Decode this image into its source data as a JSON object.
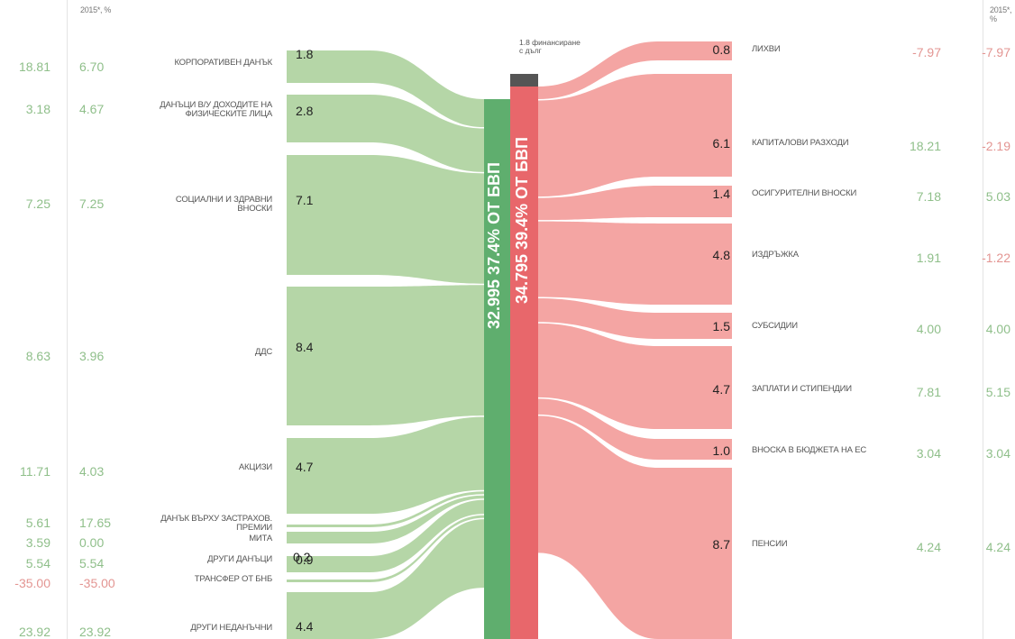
{
  "headers": {
    "left_col2": "2015*, %",
    "right_col2": "2015*, %"
  },
  "left_items": [
    {
      "label": "КОРПОРАТИВЕН ДАНЪК",
      "value": "1.8",
      "col1": "18.81",
      "col2": "6.70"
    },
    {
      "label": "ДАНЪЦИ В/У ДОХОДИТЕ НА ФИЗИЧЕСКИТЕ ЛИЦА",
      "value": "2.8",
      "col1": "3.18",
      "col2": "4.67"
    },
    {
      "label": "СОЦИАЛНИ И ЗДРАВНИ ВНОСКИ",
      "value": "7.1",
      "col1": "7.25",
      "col2": "7.25"
    },
    {
      "label": "ДДС",
      "value": "8.4",
      "col1": "8.63",
      "col2": "3.96"
    },
    {
      "label": "АКЦИЗИ",
      "value": "4.7",
      "col1": "11.71",
      "col2": "4.03"
    },
    {
      "label": "ДАНЪК ВЪРХУ ЗАСТРАХОВ. ПРЕМИИ",
      "value": "",
      "col1": "5.61",
      "col2": "17.65"
    },
    {
      "label": "МИТА",
      "value": "0.2",
      "col1": "3.59",
      "col2": "0.00"
    },
    {
      "label": "ДРУГИ ДАНЪЦИ",
      "value": "0.9",
      "col1": "5.54",
      "col2": "5.54"
    },
    {
      "label": "ТРАНСФЕР ОТ БНБ",
      "value": "",
      "col1": "-35.00",
      "col2": "-35.00"
    },
    {
      "label": "ДРУГИ НЕДАНЪЧНИ",
      "value": "4.4",
      "col1": "23.92",
      "col2": "23.92"
    }
  ],
  "right_items": [
    {
      "label": "ЛИХВИ",
      "value": "0.8",
      "col1": "-7.97",
      "col2": "-7.97"
    },
    {
      "label": "КАПИТАЛОВИ РАЗХОДИ",
      "value": "6.1",
      "col1": "18.21",
      "col2": "-2.19"
    },
    {
      "label": "ОСИГУРИТЕЛНИ ВНОСКИ",
      "value": "1.4",
      "col1": "7.18",
      "col2": "5.03"
    },
    {
      "label": "ИЗДРЪЖКА",
      "value": "4.8",
      "col1": "1.91",
      "col2": "-1.22"
    },
    {
      "label": "СУБСИДИИ",
      "value": "1.5",
      "col1": "4.00",
      "col2": "4.00"
    },
    {
      "label": "ЗАПЛАТИ И СТИПЕНДИИ",
      "value": "4.7",
      "col1": "7.81",
      "col2": "5.15"
    },
    {
      "label": "ВНОСКА В БЮДЖЕТА НА ЕС",
      "value": "1.0",
      "col1": "3.04",
      "col2": "3.04"
    },
    {
      "label": "ПЕНСИИ",
      "value": "8.7",
      "col1": "4.24",
      "col2": "4.24"
    }
  ],
  "center": {
    "revenue_text": "32.995  37.4% ОТ БВП",
    "expense_text": "34.795  39.4% ОТ БВП",
    "funding_note_line1": "1.8 финансиране",
    "funding_note_line2": "с дълг"
  },
  "colors": {
    "revenue_flow": "#b5d6a7",
    "revenue_bar": "#5fae6e",
    "expense_flow": "#f4a5a3",
    "expense_bar": "#e8676b",
    "funding": "#555555"
  },
  "chart_data": {
    "type": "sankey",
    "revenue_total": 32.995,
    "expense_total": 34.795,
    "revenue_pct_gdp": "37.4%",
    "expense_pct_gdp": "39.4%",
    "funding_from_debt": 1.8,
    "revenues": [
      {
        "name": "КОРПОРАТИВЕН ДАНЪК",
        "value": 1.8
      },
      {
        "name": "ДАНЪЦИ В/У ДОХОДИТЕ НА ФИЗИЧЕСКИТЕ ЛИЦА",
        "value": 2.8
      },
      {
        "name": "СОЦИАЛНИ И ЗДРАВНИ ВНОСКИ",
        "value": 7.1
      },
      {
        "name": "ДДС",
        "value": 8.4
      },
      {
        "name": "АКЦИЗИ",
        "value": 4.7
      },
      {
        "name": "ДАНЪК ВЪРХУ ЗАСТРАХОВ. ПРЕМИИ",
        "value": null
      },
      {
        "name": "МИТА",
        "value": 0.2
      },
      {
        "name": "ДРУГИ ДАНЪЦИ",
        "value": 0.9
      },
      {
        "name": "ТРАНСФЕР ОТ БНБ",
        "value": null
      },
      {
        "name": "ДРУГИ НЕДАНЪЧНИ",
        "value": 4.4
      }
    ],
    "expenses": [
      {
        "name": "ЛИХВИ",
        "value": 0.8
      },
      {
        "name": "КАПИТАЛОВИ РАЗХОДИ",
        "value": 6.1
      },
      {
        "name": "ОСИГУРИТЕЛНИ ВНОСКИ",
        "value": 1.4
      },
      {
        "name": "ИЗДРЪЖКА",
        "value": 4.8
      },
      {
        "name": "СУБСИДИИ",
        "value": 1.5
      },
      {
        "name": "ЗАПЛАТИ И СТИПЕНДИИ",
        "value": 4.7
      },
      {
        "name": "ВНОСКА В БЮДЖЕТА НА ЕС",
        "value": 1.0
      },
      {
        "name": "ПЕНСИИ",
        "value": 8.7
      }
    ]
  }
}
